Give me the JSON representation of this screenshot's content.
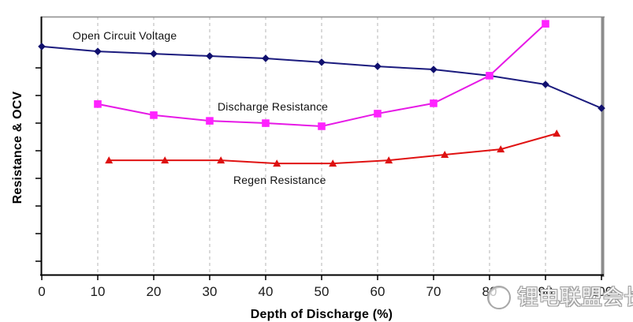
{
  "chart_data": {
    "type": "line",
    "title": "",
    "xlabel": "Depth of Discharge (%)",
    "ylabel": "Resistance & OCV",
    "xlim": [
      0,
      100
    ],
    "x_ticks": [
      0,
      10,
      20,
      30,
      40,
      50,
      60,
      70,
      80,
      90,
      100
    ],
    "ylim": [
      0,
      100
    ],
    "y_axis_note": "y-axis has tick marks but no numeric labels; y values below are relative units (0 = x-axis, 100 = top frame)",
    "grid": "vertical dashed gridlines at x = 10..90",
    "legend_position": "inline text annotations inside plot",
    "series": [
      {
        "name": "Open Circuit Voltage",
        "marker": "diamond",
        "x": [
          0,
          10,
          20,
          30,
          40,
          50,
          60,
          70,
          80,
          90,
          100
        ],
        "y": [
          88.4,
          86.5,
          85.6,
          84.7,
          83.8,
          82.3,
          80.7,
          79.5,
          77.1,
          73.7,
          64.5
        ]
      },
      {
        "name": "Discharge Resistance",
        "marker": "square",
        "x": [
          10,
          20,
          30,
          40,
          50,
          60,
          70,
          80,
          90
        ],
        "y": [
          66.1,
          61.8,
          59.6,
          58.7,
          57.5,
          62.4,
          66.4,
          77.1,
          97.2
        ]
      },
      {
        "name": "Regen Resistance",
        "marker": "triangle",
        "x": [
          12,
          22,
          32,
          42,
          52,
          62,
          72,
          82,
          92
        ],
        "y": [
          44.3,
          44.3,
          44.3,
          43.1,
          43.1,
          44.3,
          46.5,
          48.6,
          54.7
        ]
      }
    ],
    "annotations": [
      {
        "text": "Open Circuit Voltage",
        "near_x": 6,
        "position": "above OCV curve, upper left"
      },
      {
        "text": "Discharge Resistance",
        "near_x": 32,
        "position": "above discharge-resistance curve, mid plot"
      },
      {
        "text": "Regen Resistance",
        "near_x": 34,
        "position": "below regen-resistance curve"
      }
    ]
  },
  "labels": {
    "ocv": "Open Circuit Voltage",
    "discharge": "Discharge Resistance",
    "regen": "Regen Resistance"
  },
  "watermark": {
    "text": "锂电联盟会长",
    "logo": "circle-logo"
  },
  "colors": {
    "ocv_line": "#1b1b7e",
    "ocv_marker": "#10106e",
    "discharge_line": "#e619e6",
    "discharge_marker": "#ff22ff",
    "regen_line": "#e01212",
    "regen_marker": "#dd1111",
    "gridline": "#b4b4b4",
    "axis": "#000000",
    "frame_gray": "#8c8c8c",
    "tick_label": "#1a1a1a",
    "watermark_gray": "#9b9b9b",
    "background": "#ffffff"
  }
}
